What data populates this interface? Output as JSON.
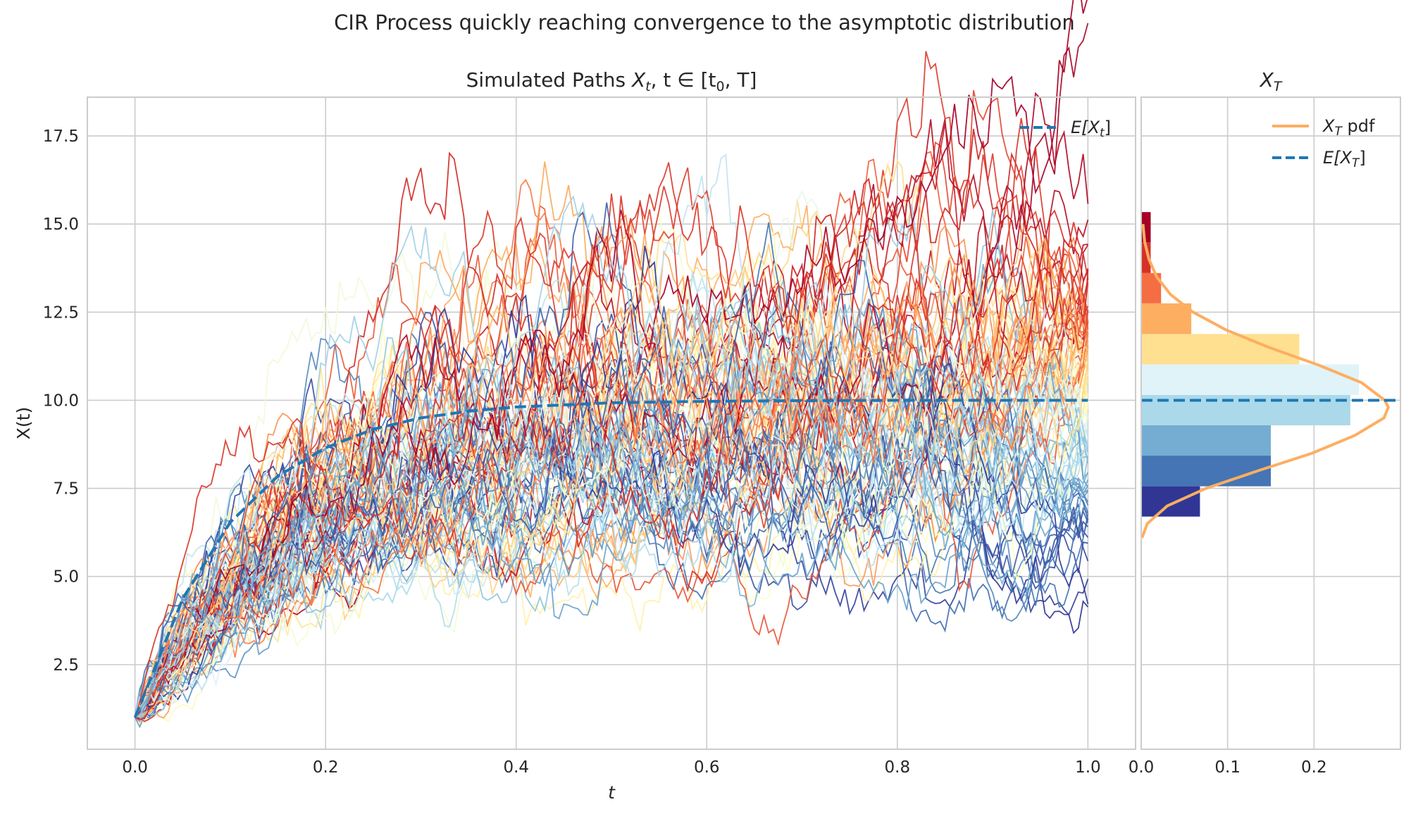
{
  "figure": {
    "title": "CIR Process quickly reaching convergence to the asymptotic distribution"
  },
  "colors": {
    "mean_line": "#1f77b4",
    "pdf_line": "#fdae61",
    "grid": "#cccccc",
    "palette_RdYlBu": [
      "#a50026",
      "#d73027",
      "#f46d43",
      "#fdae61",
      "#fee090",
      "#ffffbf",
      "#e0f3f8",
      "#abd9e9",
      "#74add1",
      "#4575b4",
      "#313695"
    ]
  },
  "chart_data": [
    {
      "type": "line",
      "title": "Simulated Paths X_t, t ∈ [t_0, T]",
      "title_parts": {
        "text": "Simulated Paths ",
        "math": "X",
        "math_sub": "t",
        "rest": ", t ∈ [t",
        "rest_sub": "0",
        "rest_end": ", T]"
      },
      "xlabel": "t",
      "ylabel": "X(t)",
      "xlim": [
        -0.05,
        1.05
      ],
      "ylim": [
        0.1,
        18.6
      ],
      "xticks": [
        0.0,
        0.2,
        0.4,
        0.6,
        0.8,
        1.0
      ],
      "xtick_labels": [
        "0.0",
        "0.2",
        "0.4",
        "0.6",
        "0.8",
        "1.0"
      ],
      "yticks": [
        2.5,
        5.0,
        7.5,
        10.0,
        12.5,
        15.0,
        17.5
      ],
      "ytick_labels": [
        "2.5",
        "5.0",
        "7.5",
        "10.0",
        "12.5",
        "15.0",
        "17.5"
      ],
      "grid": true,
      "legend_position": "top-right",
      "legend": [
        {
          "label": "E[X_t]",
          "base": "E[X",
          "sub": "t",
          "tail": "]",
          "style": "dashed",
          "color": "#1f77b4"
        }
      ],
      "process": {
        "x0": 1.0,
        "mean_level": 10.0,
        "t_start": 0.0,
        "t_end": 1.0,
        "n_steps": 200,
        "n_paths": 100
      },
      "series": [
        {
          "kind": "mean",
          "x": [
            0.0,
            0.05,
            0.1,
            0.15,
            0.2,
            0.25,
            0.3,
            0.35,
            0.4,
            0.5,
            0.6,
            0.7,
            0.8,
            0.9,
            1.0
          ],
          "values": [
            1.0,
            4.37,
            6.54,
            7.85,
            8.65,
            9.18,
            9.5,
            9.69,
            9.81,
            9.93,
            9.97,
            9.99,
            10.0,
            10.0,
            10.0
          ]
        }
      ]
    },
    {
      "type": "bar",
      "orientation": "horizontal",
      "title": "X_T",
      "title_parts": {
        "math": "X",
        "math_sub": "T"
      },
      "xlim": [
        0.0,
        0.3
      ],
      "xticks": [
        0.0,
        0.1,
        0.2
      ],
      "xtick_labels": [
        "0.0",
        "0.1",
        "0.2"
      ],
      "grid": true,
      "legend_position": "top-right",
      "legend": [
        {
          "label": "X_T pdf",
          "base": "X",
          "sub": "T",
          "tail": " pdf",
          "style": "solid",
          "color": "#fdae61"
        },
        {
          "label": "E[X_T]",
          "base": "E[X",
          "sub": "T",
          "tail": "]",
          "style": "dashed",
          "color": "#1f77b4"
        }
      ],
      "bins": [
        {
          "y0": 6.7,
          "y1": 7.56,
          "value": 0.068,
          "color": "#313695"
        },
        {
          "y0": 7.56,
          "y1": 8.43,
          "value": 0.15,
          "color": "#4575b4"
        },
        {
          "y0": 8.43,
          "y1": 9.29,
          "value": 0.15,
          "color": "#74add1"
        },
        {
          "y0": 9.29,
          "y1": 10.15,
          "value": 0.242,
          "color": "#abd9e9"
        },
        {
          "y0": 10.15,
          "y1": 11.02,
          "value": 0.252,
          "color": "#e0f3f8"
        },
        {
          "y0": 11.02,
          "y1": 11.88,
          "value": 0.183,
          "color": "#fee090"
        },
        {
          "y0": 11.88,
          "y1": 12.75,
          "value": 0.058,
          "color": "#fdae61"
        },
        {
          "y0": 12.75,
          "y1": 13.61,
          "value": 0.023,
          "color": "#f46d43"
        },
        {
          "y0": 13.61,
          "y1": 14.48,
          "value": 0.011,
          "color": "#d73027"
        },
        {
          "y0": 14.48,
          "y1": 15.34,
          "value": 0.011,
          "color": "#a50026"
        }
      ],
      "pdf": {
        "y": [
          6.1,
          6.5,
          7.0,
          7.5,
          8.0,
          8.5,
          9.0,
          9.5,
          9.8,
          10.0,
          10.5,
          11.0,
          11.5,
          12.0,
          12.5,
          13.0,
          13.5,
          14.0,
          14.5,
          15.0
        ],
        "density": [
          0.001,
          0.007,
          0.03,
          0.075,
          0.135,
          0.198,
          0.247,
          0.281,
          0.286,
          0.282,
          0.255,
          0.205,
          0.148,
          0.098,
          0.06,
          0.034,
          0.018,
          0.009,
          0.004,
          0.002
        ]
      },
      "mean": 10.0
    }
  ]
}
